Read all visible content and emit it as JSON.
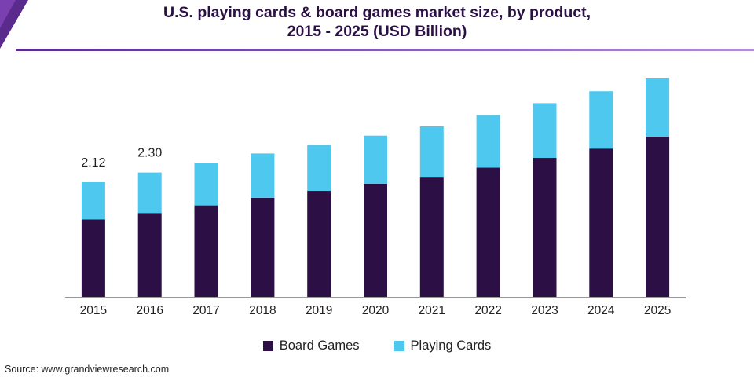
{
  "title": {
    "line1": "U.S. playing cards & board games market size, by product,",
    "line2": "2015 - 2025 (USD Billion)"
  },
  "colors": {
    "board_games": "#2b0f45",
    "playing_cards": "#4fc8f0",
    "header_accent": "#5a2a8c"
  },
  "legend": {
    "board_games": "Board Games",
    "playing_cards": "Playing Cards"
  },
  "source": "Source: www.grandviewresearch.com",
  "chart_data": {
    "type": "bar",
    "stacked": true,
    "categories": [
      "2015",
      "2016",
      "2017",
      "2018",
      "2019",
      "2020",
      "2021",
      "2022",
      "2023",
      "2024",
      "2025"
    ],
    "series": [
      {
        "name": "Board Games",
        "values": [
          1.43,
          1.55,
          1.69,
          1.83,
          1.96,
          2.09,
          2.22,
          2.39,
          2.57,
          2.74,
          2.96
        ]
      },
      {
        "name": "Playing Cards",
        "values": [
          0.69,
          0.75,
          0.79,
          0.82,
          0.85,
          0.89,
          0.93,
          0.97,
          1.01,
          1.06,
          1.09
        ]
      }
    ],
    "data_labels": [
      {
        "category": "2015",
        "text": "2.12"
      },
      {
        "category": "2016",
        "text": "2.30"
      }
    ],
    "ylim": [
      0,
      4.05
    ],
    "xlabel": "",
    "ylabel": "",
    "grid": false,
    "legend_position": "bottom"
  }
}
